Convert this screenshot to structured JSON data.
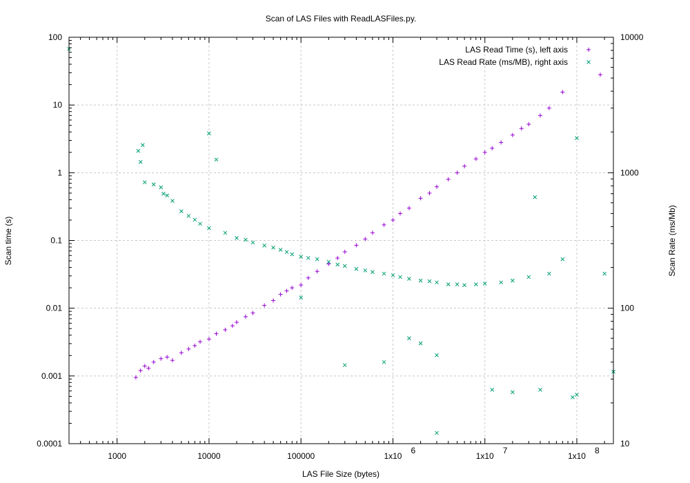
{
  "chart_data": {
    "type": "scatter",
    "title": "Scan of LAS Files with ReadLASFiles.py.",
    "xlabel": "LAS File Size (bytes)",
    "ylabel": "Scan time (s)",
    "y2label": "Scan Rate (ms/Mb)",
    "x_scale": "log",
    "y_scale": "log",
    "y2_scale": "log",
    "xlim": [
      300,
      250000000
    ],
    "ylim": [
      0.0001,
      100
    ],
    "y2lim": [
      10,
      10000
    ],
    "grid": true,
    "legend_position": "top-right",
    "x_ticks": [
      {
        "value": 1000,
        "label": "1000"
      },
      {
        "value": 10000,
        "label": "10000"
      },
      {
        "value": 100000,
        "label": "100000"
      },
      {
        "value": 1000000,
        "label": "1x10",
        "exp": "6"
      },
      {
        "value": 10000000,
        "label": "1x10",
        "exp": "7"
      },
      {
        "value": 100000000,
        "label": "1x10",
        "exp": "8"
      }
    ],
    "y_ticks": [
      {
        "value": 0.0001,
        "label": "0.0001"
      },
      {
        "value": 0.001,
        "label": "0.001"
      },
      {
        "value": 0.01,
        "label": "0.01"
      },
      {
        "value": 0.1,
        "label": "0.1"
      },
      {
        "value": 1,
        "label": "1"
      },
      {
        "value": 10,
        "label": "10"
      },
      {
        "value": 100,
        "label": "100"
      }
    ],
    "y2_ticks": [
      {
        "value": 10,
        "label": "10"
      },
      {
        "value": 100,
        "label": "100"
      },
      {
        "value": 1000,
        "label": "1000"
      },
      {
        "value": 10000,
        "label": "10000"
      }
    ],
    "series": [
      {
        "name": "LAS Read Time (s), left axis",
        "axis": "left",
        "marker": "+",
        "color": "#9400d3",
        "points": [
          [
            1600,
            0.00095
          ],
          [
            1800,
            0.0012
          ],
          [
            2000,
            0.0014
          ],
          [
            2200,
            0.0013
          ],
          [
            2500,
            0.0016
          ],
          [
            3000,
            0.0018
          ],
          [
            3500,
            0.0019
          ],
          [
            4000,
            0.0017
          ],
          [
            5000,
            0.0022
          ],
          [
            6000,
            0.0025
          ],
          [
            7000,
            0.0028
          ],
          [
            8000,
            0.0032
          ],
          [
            10000,
            0.0035
          ],
          [
            12000,
            0.0042
          ],
          [
            15000,
            0.0048
          ],
          [
            18000,
            0.0055
          ],
          [
            20000,
            0.0062
          ],
          [
            25000,
            0.0075
          ],
          [
            30000,
            0.0085
          ],
          [
            40000,
            0.011
          ],
          [
            50000,
            0.013
          ],
          [
            60000,
            0.016
          ],
          [
            70000,
            0.018
          ],
          [
            80000,
            0.02
          ],
          [
            100000,
            0.022
          ],
          [
            120000,
            0.028
          ],
          [
            150000,
            0.035
          ],
          [
            200000,
            0.045
          ],
          [
            250000,
            0.055
          ],
          [
            300000,
            0.068
          ],
          [
            400000,
            0.085
          ],
          [
            500000,
            0.105
          ],
          [
            600000,
            0.13
          ],
          [
            800000,
            0.17
          ],
          [
            1000000,
            0.2
          ],
          [
            1200000,
            0.25
          ],
          [
            1500000,
            0.3
          ],
          [
            2000000,
            0.42
          ],
          [
            2500000,
            0.5
          ],
          [
            3000000,
            0.62
          ],
          [
            4000000,
            0.8
          ],
          [
            5000000,
            1.0
          ],
          [
            6000000,
            1.25
          ],
          [
            8000000,
            1.6
          ],
          [
            10000000,
            2.0
          ],
          [
            12000000,
            2.3
          ],
          [
            15000000,
            2.8
          ],
          [
            20000000,
            3.6
          ],
          [
            25000000,
            4.5
          ],
          [
            30000000,
            5.2
          ],
          [
            40000000,
            7.0
          ],
          [
            50000000,
            9.0
          ],
          [
            70000000,
            15.5
          ],
          [
            180000000,
            28
          ]
        ]
      },
      {
        "name": "LAS Read Rate (ms/MB), right axis",
        "axis": "right",
        "marker": "x",
        "color": "#009e73",
        "points": [
          [
            300,
            8200
          ],
          [
            1700,
            1450
          ],
          [
            1900,
            1600
          ],
          [
            1800,
            1200
          ],
          [
            2000,
            850
          ],
          [
            2500,
            820
          ],
          [
            3000,
            780
          ],
          [
            3200,
            700
          ],
          [
            3500,
            680
          ],
          [
            4000,
            620
          ],
          [
            5000,
            520
          ],
          [
            6000,
            480
          ],
          [
            7000,
            450
          ],
          [
            8000,
            420
          ],
          [
            10000,
            1950
          ],
          [
            12000,
            1250
          ],
          [
            10000,
            390
          ],
          [
            15000,
            360
          ],
          [
            20000,
            330
          ],
          [
            25000,
            320
          ],
          [
            30000,
            305
          ],
          [
            40000,
            290
          ],
          [
            50000,
            280
          ],
          [
            60000,
            270
          ],
          [
            70000,
            260
          ],
          [
            80000,
            250
          ],
          [
            100000,
            240
          ],
          [
            100000,
            120
          ],
          [
            120000,
            235
          ],
          [
            150000,
            230
          ],
          [
            200000,
            220
          ],
          [
            250000,
            210
          ],
          [
            300000,
            205
          ],
          [
            400000,
            195
          ],
          [
            500000,
            190
          ],
          [
            600000,
            185
          ],
          [
            800000,
            180
          ],
          [
            1000000,
            175
          ],
          [
            1200000,
            170
          ],
          [
            1500000,
            165
          ],
          [
            2000000,
            160
          ],
          [
            2500000,
            158
          ],
          [
            3000000,
            155
          ],
          [
            4000000,
            150
          ],
          [
            5000000,
            150
          ],
          [
            6000000,
            148
          ],
          [
            8000000,
            150
          ],
          [
            10000000,
            152
          ],
          [
            15000000,
            155
          ],
          [
            20000000,
            160
          ],
          [
            30000000,
            170
          ],
          [
            50000000,
            180
          ],
          [
            200000000,
            180
          ],
          [
            70000000,
            230
          ],
          [
            35000000,
            660
          ],
          [
            100000000,
            1800
          ],
          [
            3000000,
            45
          ],
          [
            1500000,
            60
          ],
          [
            2000000,
            55
          ],
          [
            800000,
            40
          ],
          [
            300000,
            38
          ],
          [
            3000000,
            12
          ],
          [
            12000000,
            25
          ],
          [
            20000000,
            24
          ],
          [
            40000000,
            25
          ],
          [
            90000000,
            22
          ],
          [
            100000000,
            23
          ],
          [
            250000000,
            34
          ]
        ]
      }
    ]
  }
}
